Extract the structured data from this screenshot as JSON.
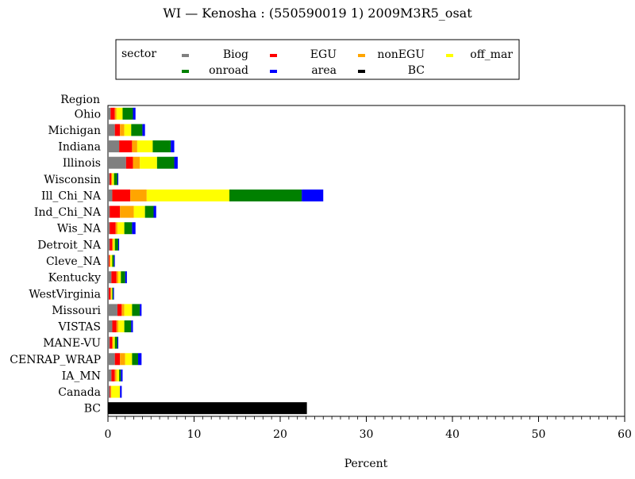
{
  "chart_data": {
    "type": "bar",
    "orientation": "horizontal",
    "stacked": true,
    "title": "WI — Kenosha : (550590019 1) 2009M3R5_osat",
    "xlabel": "Percent",
    "ylabel": "Region",
    "xlim": [
      0,
      60
    ],
    "xticks": [
      0,
      10,
      20,
      30,
      40,
      50,
      60
    ],
    "grid": false,
    "legend_title": "sector",
    "legend_position": "top",
    "categories": [
      "Ohio",
      "Michigan",
      "Indiana",
      "Illinois",
      "Wisconsin",
      "Ill_Chi_NA",
      "Ind_Chi_NA",
      "Wis_NA",
      "Detroit_NA",
      "Cleve_NA",
      "Kentucky",
      "WestVirginia",
      "Missouri",
      "VISTAS",
      "MANE-VU",
      "CENRAP_WRAP",
      "IA_MN",
      "Canada",
      "BC"
    ],
    "series": [
      {
        "name": "Biog",
        "color": "#808080",
        "values": [
          0.3,
          0.8,
          1.3,
          2.1,
          0.2,
          0.5,
          0.2,
          0.2,
          0.2,
          0.1,
          0.4,
          0.1,
          1.1,
          0.5,
          0.2,
          0.8,
          0.4,
          0.2,
          0
        ]
      },
      {
        "name": "EGU",
        "color": "#ff0000",
        "values": [
          0.5,
          0.6,
          1.5,
          0.8,
          0.2,
          2.1,
          1.2,
          0.7,
          0.3,
          0.1,
          0.6,
          0.2,
          0.5,
          0.5,
          0.3,
          0.6,
          0.4,
          0.1,
          0
        ]
      },
      {
        "name": "nonEGU",
        "color": "#ffa500",
        "values": [
          0.2,
          0.5,
          0.6,
          0.8,
          0.1,
          1.9,
          1.6,
          0.2,
          0.1,
          0.1,
          0.2,
          0.1,
          0.3,
          0.2,
          0.1,
          0.6,
          0.2,
          0.1,
          0
        ]
      },
      {
        "name": "off_mar",
        "color": "#ffff00",
        "values": [
          0.7,
          0.8,
          1.8,
          2.0,
          0.2,
          9.6,
          1.3,
          0.8,
          0.2,
          0.2,
          0.3,
          0.1,
          0.9,
          0.7,
          0.2,
          0.8,
          0.3,
          1.0,
          0
        ]
      },
      {
        "name": "onroad",
        "color": "#008000",
        "values": [
          1.2,
          1.3,
          2.1,
          2.0,
          0.4,
          8.4,
          1.0,
          0.9,
          0.4,
          0.2,
          0.5,
          0.1,
          0.9,
          0.8,
          0.3,
          0.7,
          0.2,
          0,
          0
        ]
      },
      {
        "name": "area",
        "color": "#0000ff",
        "values": [
          0.3,
          0.3,
          0.4,
          0.4,
          0.1,
          2.5,
          0.3,
          0.4,
          0.1,
          0.1,
          0.2,
          0.1,
          0.2,
          0.2,
          0.1,
          0.4,
          0.2,
          0.2,
          0
        ]
      },
      {
        "name": "BC",
        "color": "#000000",
        "values": [
          0,
          0,
          0,
          0,
          0,
          0,
          0,
          0,
          0,
          0,
          0,
          0,
          0,
          0,
          0,
          0,
          0,
          0,
          23.1
        ]
      }
    ]
  }
}
